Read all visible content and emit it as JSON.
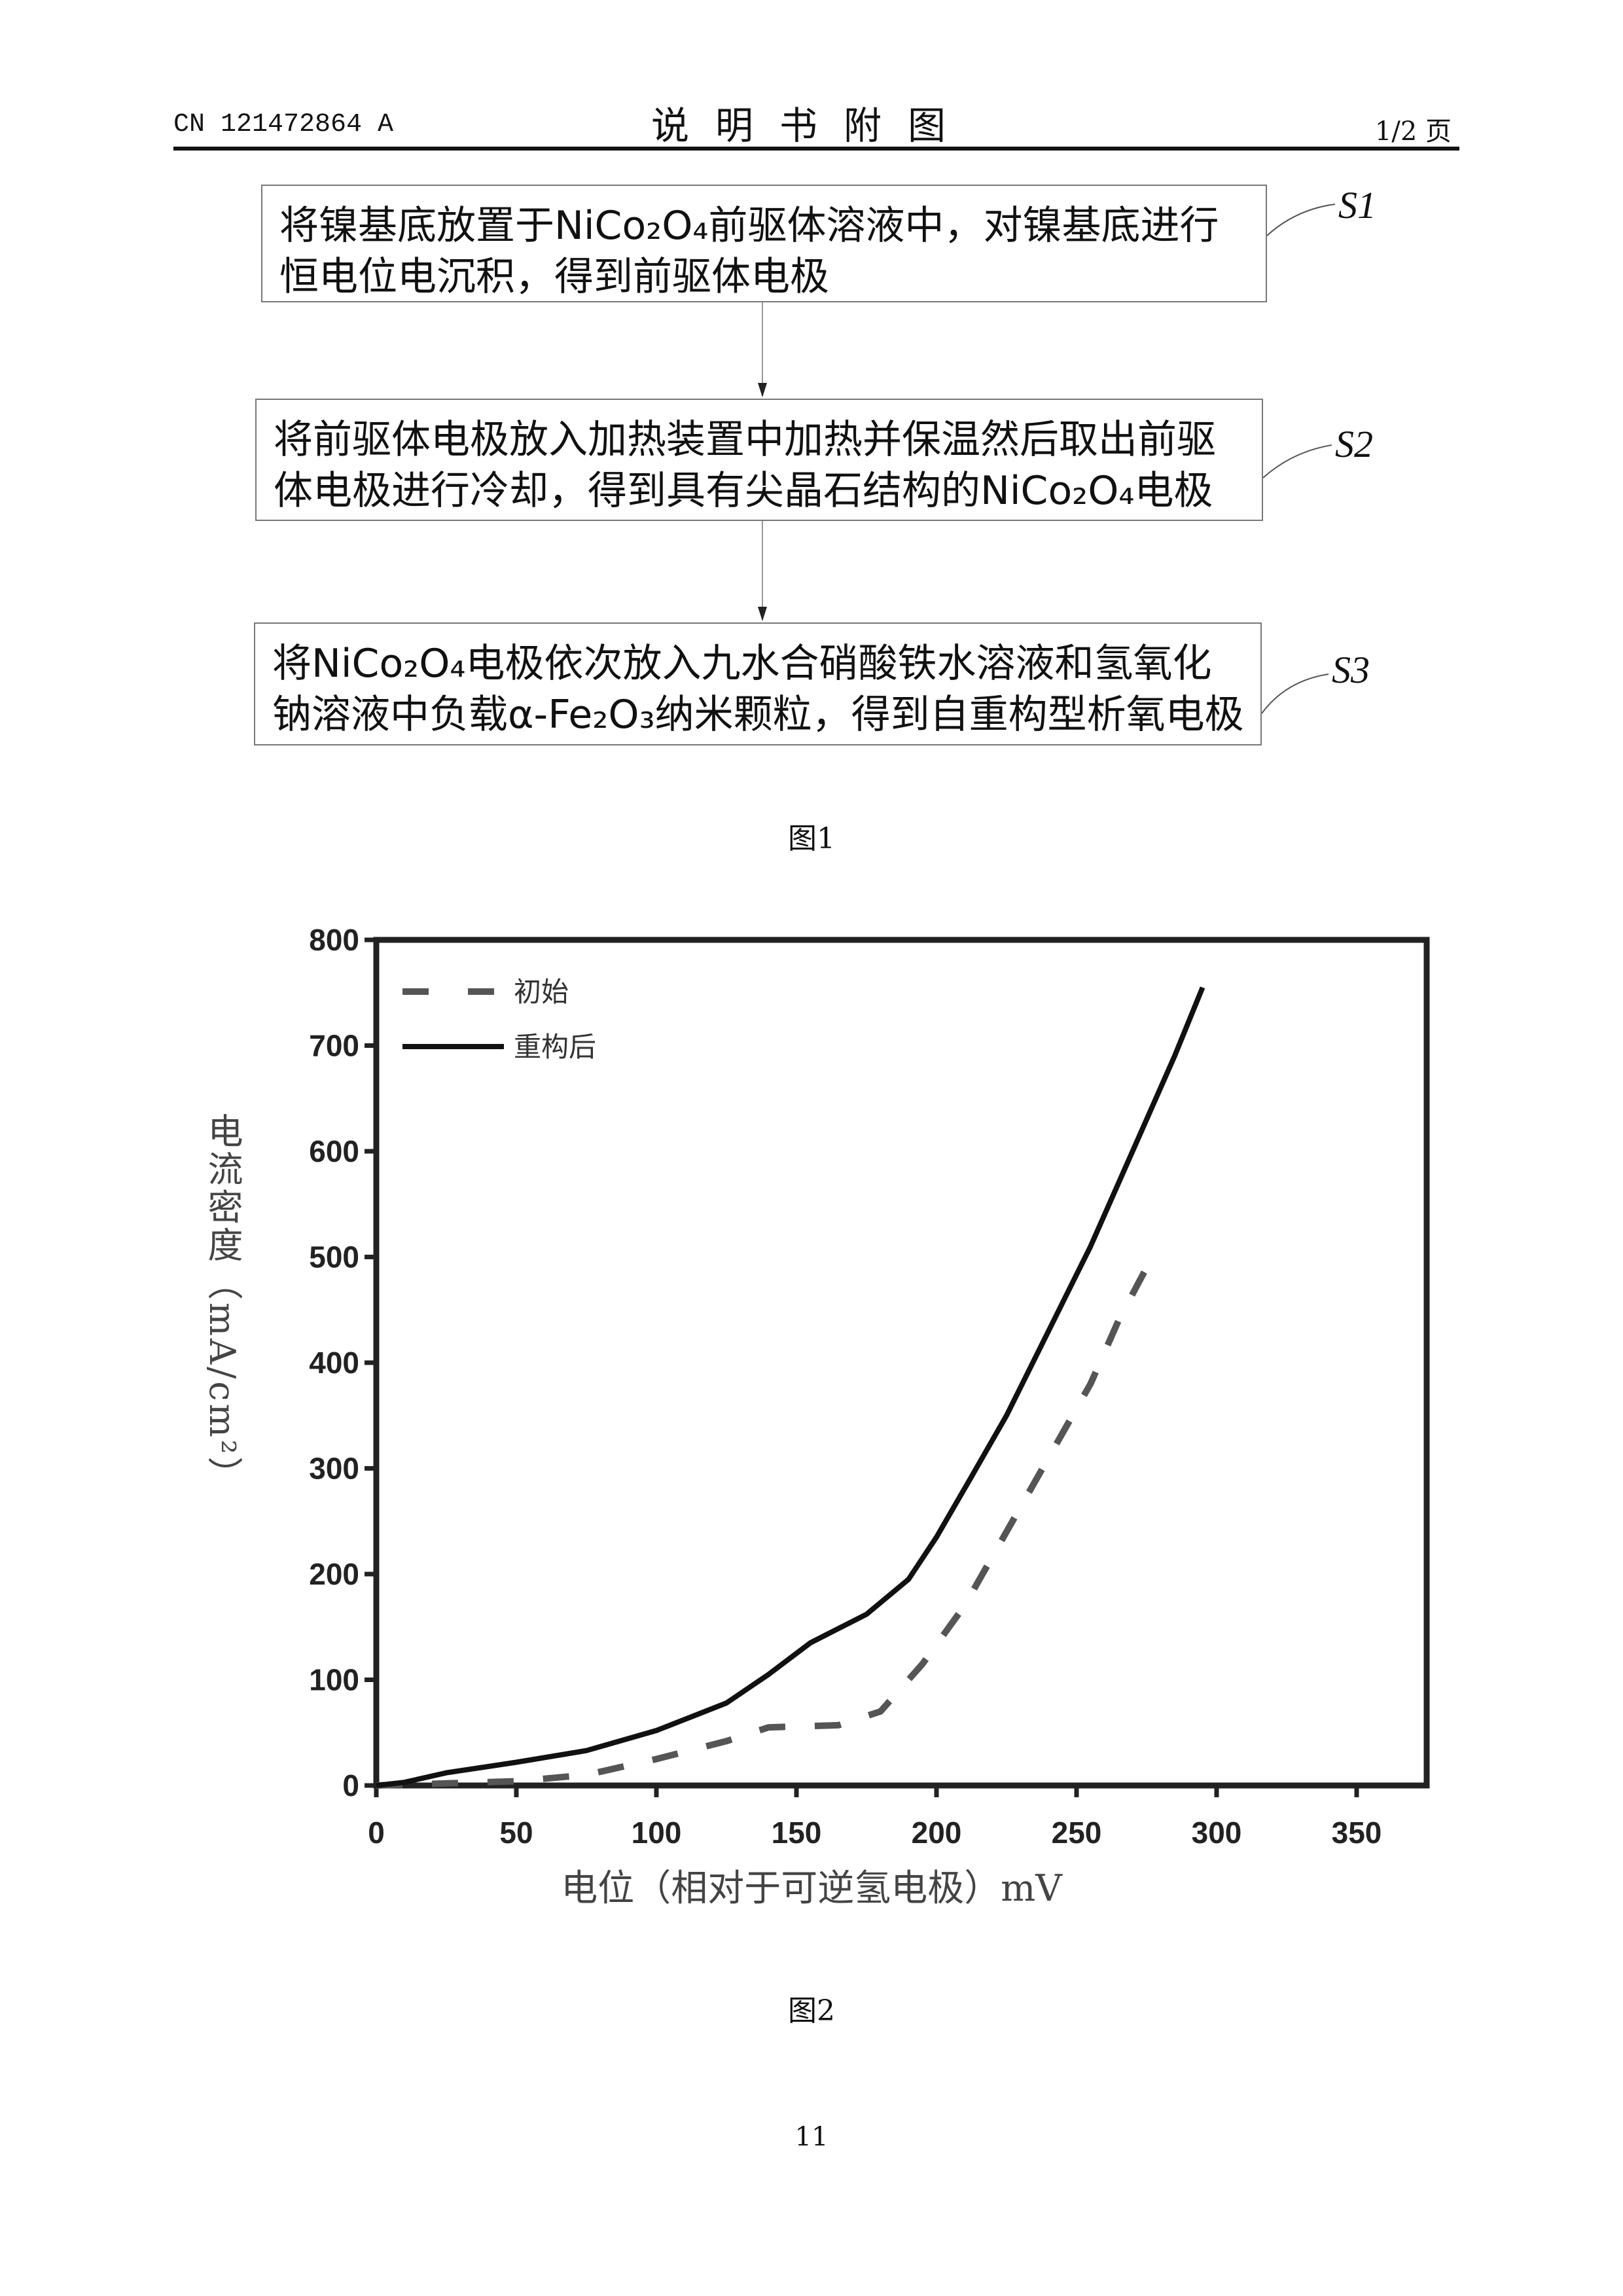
{
  "header": {
    "patent_no": "CN 121472864 A",
    "title": "说明书附图",
    "page": "1/2 页"
  },
  "figure1": {
    "steps": [
      {
        "label": "S1",
        "lines": [
          "将镍基底放置于NiCo₂O₄前驱体溶液中，对镍基底进行",
          "恒电位电沉积，得到前驱体电极"
        ]
      },
      {
        "label": "S2",
        "lines": [
          "将前驱体电极放入加热装置中加热并保温然后取出前驱",
          "体电极进行冷却，得到具有尖晶石结构的NiCo₂O₄电极"
        ]
      },
      {
        "label": "S3",
        "lines": [
          "将NiCo₂O₄电极依次放入九水合硝酸铁水溶液和氢氧化",
          "钠溶液中负载α-Fe₂O₃纳米颗粒，得到自重构型析氧电极"
        ]
      }
    ],
    "caption": "图1"
  },
  "figure2": {
    "caption": "图2"
  },
  "page_number": "11",
  "chart_data": {
    "type": "line",
    "xlabel": "电位（相对于可逆氢电极）mV",
    "ylabel": "电流密度（mA/cm²）",
    "xlim": [
      0,
      375
    ],
    "ylim": [
      0,
      800
    ],
    "xticks": [
      0,
      50,
      100,
      150,
      200,
      250,
      300,
      350
    ],
    "yticks": [
      0,
      100,
      200,
      300,
      400,
      500,
      600,
      700,
      800
    ],
    "grid": false,
    "legend_position": "top-left",
    "series": [
      {
        "name": "初始",
        "style": "dashed",
        "color": "#555555",
        "x": [
          0,
          25,
          50,
          75,
          100,
          125,
          140,
          165,
          180,
          195,
          210,
          225,
          240,
          255,
          265,
          275
        ],
        "y": [
          0,
          2,
          4,
          10,
          25,
          42,
          55,
          57,
          70,
          115,
          170,
          240,
          310,
          380,
          440,
          490
        ]
      },
      {
        "name": "重构后",
        "style": "solid",
        "color": "#111111",
        "x": [
          0,
          10,
          25,
          50,
          75,
          100,
          125,
          140,
          155,
          175,
          190,
          200,
          212,
          225,
          240,
          255,
          270,
          285,
          295
        ],
        "y": [
          0,
          3,
          12,
          22,
          33,
          52,
          78,
          105,
          135,
          162,
          195,
          235,
          290,
          350,
          430,
          510,
          600,
          690,
          755
        ]
      }
    ]
  }
}
